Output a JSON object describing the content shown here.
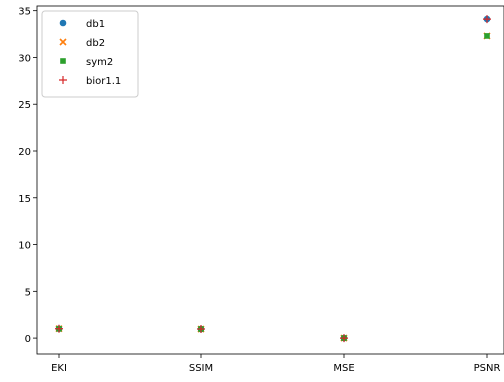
{
  "chart_data": {
    "type": "scatter",
    "categories": [
      "EKI",
      "SSIM",
      "MSE",
      "PSNR"
    ],
    "ylim": [
      -1.7,
      35.5
    ],
    "yticks": [
      0,
      5,
      10,
      15,
      20,
      25,
      30,
      35
    ],
    "grid": false,
    "legend_position": "top-left",
    "series": [
      {
        "name": "db1",
        "marker": "circle",
        "color": "#1f77b4",
        "values": [
          1.0,
          0.97,
          0.0,
          34.1
        ]
      },
      {
        "name": "db2",
        "marker": "x",
        "color": "#ff7f0e",
        "values": [
          1.0,
          0.97,
          0.0,
          32.3
        ]
      },
      {
        "name": "sym2",
        "marker": "square",
        "color": "#2ca02c",
        "values": [
          1.0,
          0.97,
          0.0,
          32.3
        ]
      },
      {
        "name": "bior1.1",
        "marker": "plus",
        "color": "#d62728",
        "values": [
          1.0,
          0.97,
          0.0,
          34.1
        ]
      }
    ]
  }
}
